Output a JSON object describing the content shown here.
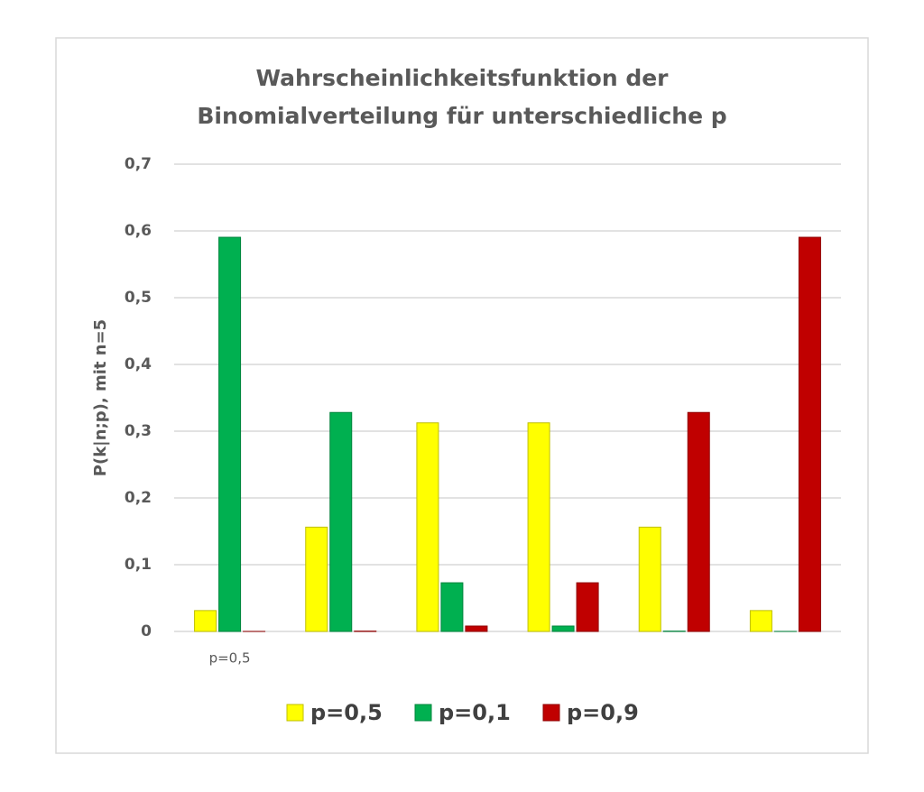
{
  "chart_data": {
    "type": "bar",
    "title": [
      "Wahrscheinlichkeitsfunktion der",
      "Binomialverteilung für unterschiedliche p"
    ],
    "y_label": "P(k|n;p), mit n=5",
    "categories": [
      "p=0,5",
      null,
      null,
      null,
      null,
      null
    ],
    "series": [
      {
        "name": "p=0,5",
        "color": "#ffff00",
        "values": [
          0.03125,
          0.15625,
          0.3125,
          0.3125,
          0.15625,
          0.03125
        ]
      },
      {
        "name": "p=0,1",
        "color": "#00b050",
        "values": [
          0.59049,
          0.32805,
          0.0729,
          0.0081,
          0.00045,
          1e-05
        ]
      },
      {
        "name": "p=0,9",
        "color": "#c00000",
        "values": [
          1e-05,
          0.00045,
          0.0081,
          0.0729,
          0.32805,
          0.59049
        ]
      }
    ],
    "ylim": [
      0,
      0.7
    ],
    "yticks": [
      0,
      {
        "value": 0.1,
        "label": "0,1"
      },
      {
        "value": 0.2,
        "label": "0,2"
      },
      {
        "value": 0.3,
        "label": "0,3"
      },
      {
        "value": 0.4,
        "label": "0,4"
      },
      {
        "value": 0.5,
        "label": "0,5"
      },
      {
        "value": 0.6,
        "label": "0,6"
      },
      {
        "value": 0.7,
        "label": "0,7"
      }
    ],
    "grid": true
  }
}
